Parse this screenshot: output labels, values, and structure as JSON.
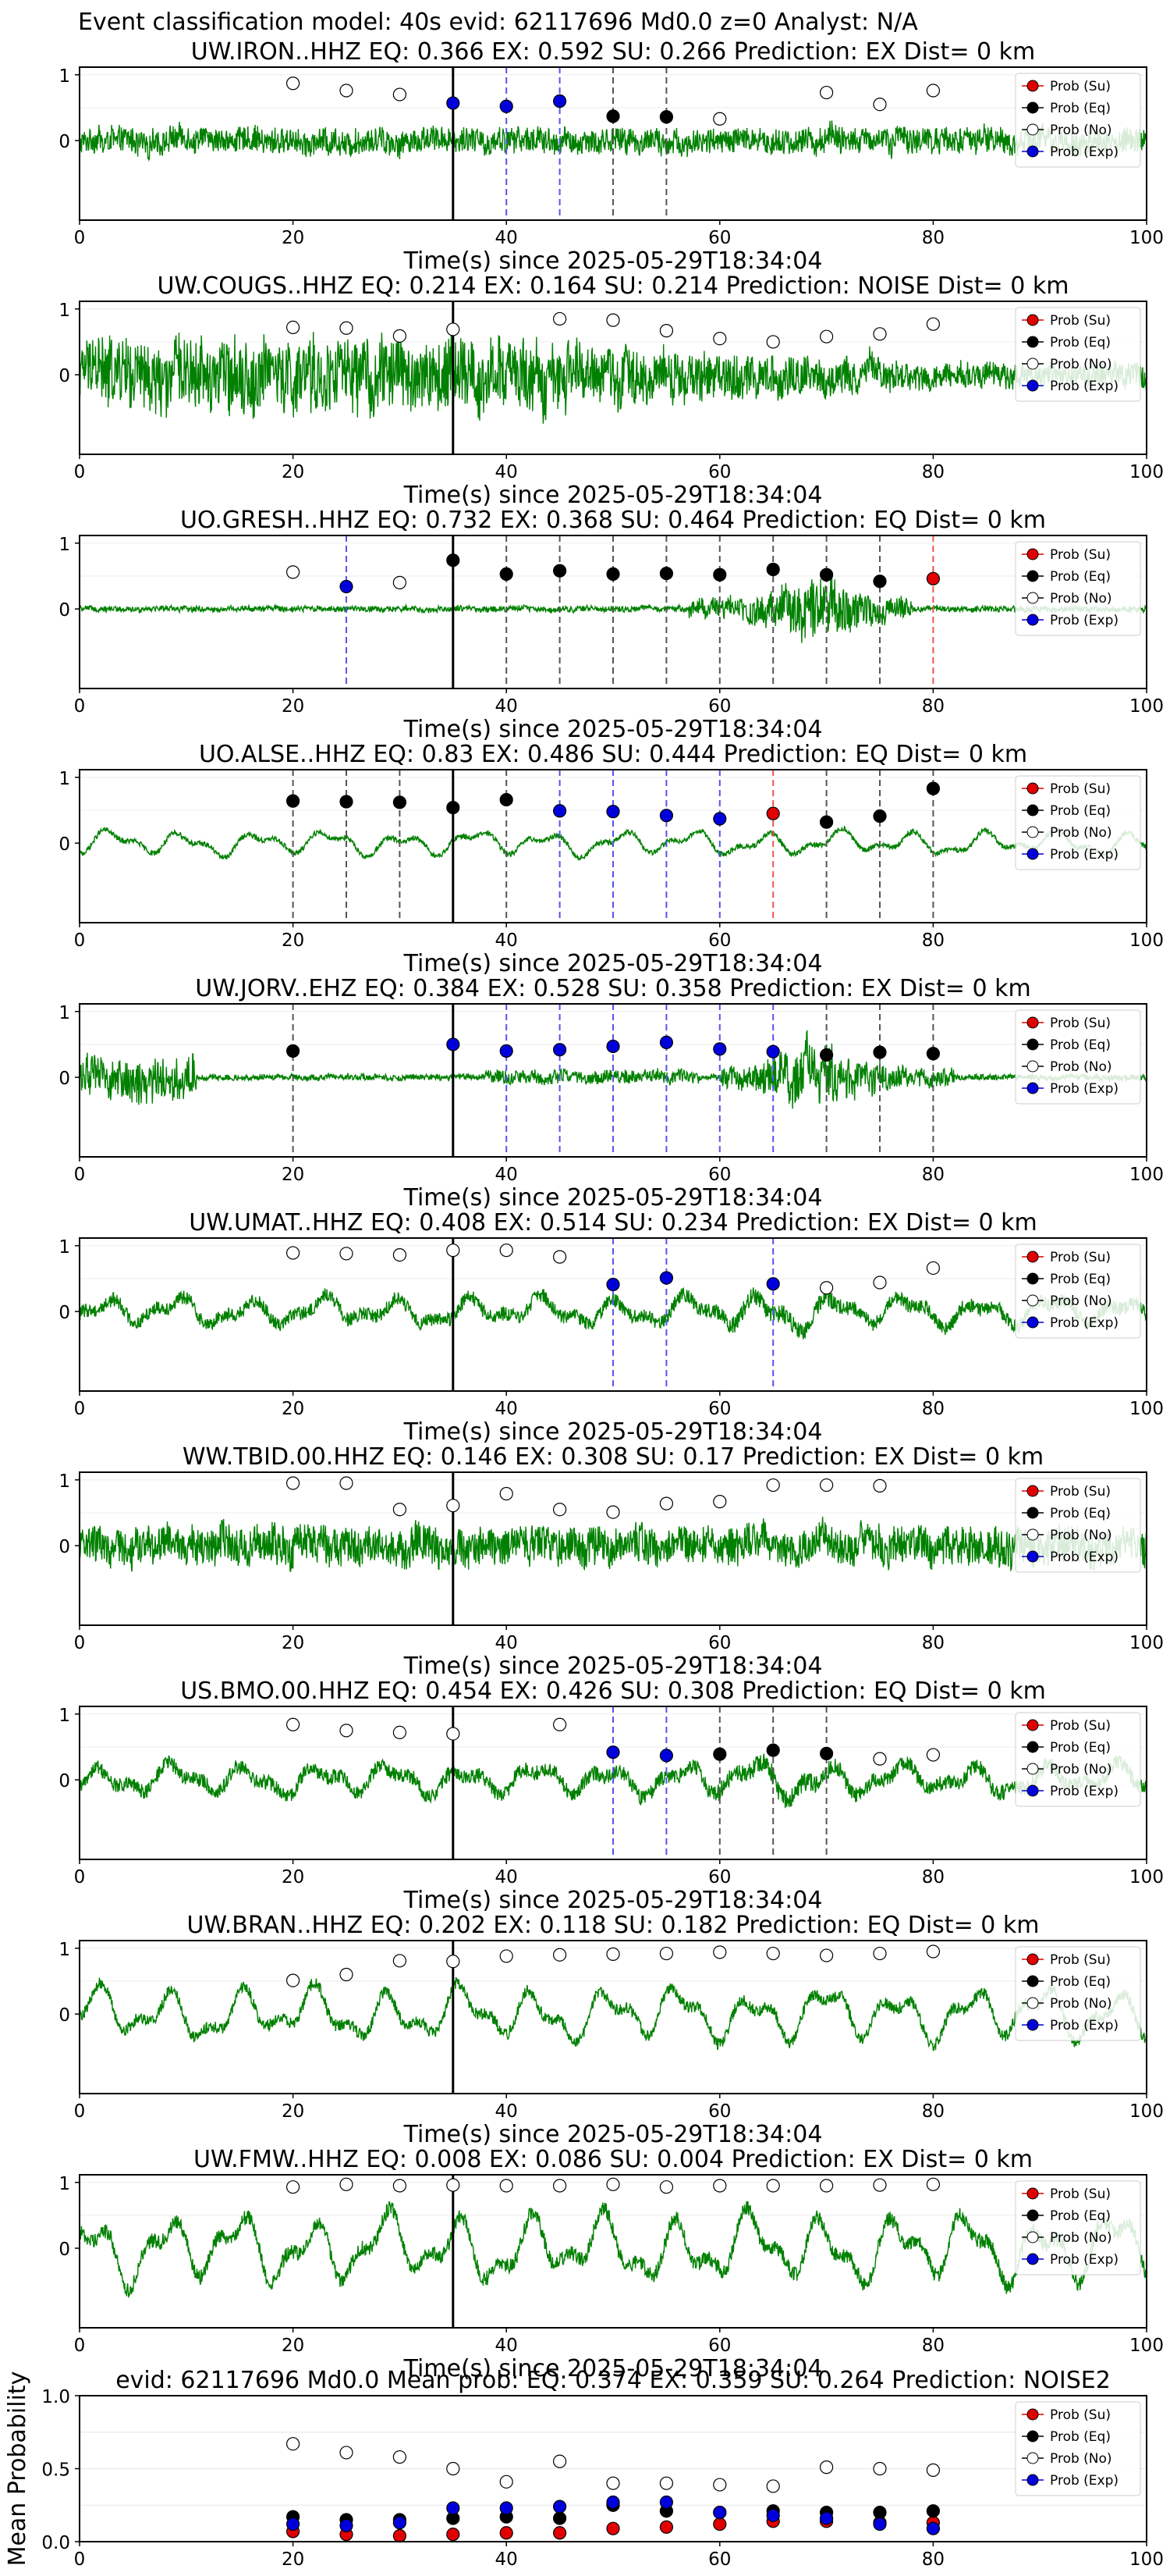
{
  "figure": {
    "suptitle": "Event classification model: 40s evid: 62117696 Md0.0 z=0 Analyst: N/A"
  },
  "legend": {
    "entries": [
      {
        "label": "Prob (Su)",
        "color": "#e00000",
        "filled": true
      },
      {
        "label": "Prob (Eq)",
        "color": "#000000",
        "filled": true
      },
      {
        "label": "Prob (No)",
        "color": "#ffffff",
        "filled": false
      },
      {
        "label": "Prob (Exp)",
        "color": "#0000dd",
        "filled": true
      }
    ],
    "placement": "top-right"
  },
  "colors": {
    "waveform": "#008000",
    "su": "#e00000",
    "eq": "#000000",
    "no": "#ffffff",
    "exp": "#0000dd",
    "line_eq": "#555555",
    "line_exp": "#5555ee",
    "line_su": "#ee5555",
    "origin_line": "#000000"
  },
  "chart_data": [
    {
      "type": "scatter",
      "title": "UW.IRON..HHZ   EQ: 0.366  EX: 0.592  SU: 0.266   Prediction: EX    Dist= 0 km",
      "xlabel": "Time(s) since 2025-05-29T18:34:04",
      "xlim": [
        0,
        100
      ],
      "xticks": [
        "0",
        "20",
        "40",
        "60",
        "80",
        "100"
      ],
      "yticks": [
        "1",
        "0"
      ],
      "waveform_style": {
        "kind": "noisy",
        "amp": 0.22
      },
      "origin_line": 35,
      "points": [
        {
          "x": 20,
          "y": 0.87,
          "class": "no"
        },
        {
          "x": 25,
          "y": 0.76,
          "class": "no"
        },
        {
          "x": 30,
          "y": 0.7,
          "class": "no"
        },
        {
          "x": 35,
          "y": 0.57,
          "class": "exp"
        },
        {
          "x": 40,
          "y": 0.52,
          "class": "exp"
        },
        {
          "x": 45,
          "y": 0.6,
          "class": "exp"
        },
        {
          "x": 50,
          "y": 0.37,
          "class": "eq"
        },
        {
          "x": 55,
          "y": 0.36,
          "class": "eq"
        },
        {
          "x": 60,
          "y": 0.33,
          "class": "no"
        },
        {
          "x": 70,
          "y": 0.73,
          "class": "no"
        },
        {
          "x": 75,
          "y": 0.55,
          "class": "no"
        },
        {
          "x": 80,
          "y": 0.76,
          "class": "no"
        }
      ]
    },
    {
      "type": "scatter",
      "title": "UW.COUGS..HHZ   EQ: 0.214  EX: 0.164  SU: 0.214   Prediction: NOISE    Dist= 0 km",
      "xlabel": "Time(s) since 2025-05-29T18:34:04",
      "xlim": [
        0,
        100
      ],
      "xticks": [
        "0",
        "20",
        "40",
        "60",
        "80",
        "100"
      ],
      "yticks": [
        "1",
        "0"
      ],
      "waveform_style": {
        "kind": "burst_decay",
        "amp": 0.6
      },
      "origin_line": 35,
      "points": [
        {
          "x": 20,
          "y": 0.72,
          "class": "no"
        },
        {
          "x": 25,
          "y": 0.71,
          "class": "no"
        },
        {
          "x": 30,
          "y": 0.59,
          "class": "no"
        },
        {
          "x": 35,
          "y": 0.69,
          "class": "no"
        },
        {
          "x": 45,
          "y": 0.85,
          "class": "no"
        },
        {
          "x": 50,
          "y": 0.83,
          "class": "no"
        },
        {
          "x": 55,
          "y": 0.67,
          "class": "no"
        },
        {
          "x": 60,
          "y": 0.55,
          "class": "no"
        },
        {
          "x": 65,
          "y": 0.5,
          "class": "no"
        },
        {
          "x": 70,
          "y": 0.58,
          "class": "no"
        },
        {
          "x": 75,
          "y": 0.62,
          "class": "no"
        },
        {
          "x": 80,
          "y": 0.77,
          "class": "no"
        }
      ]
    },
    {
      "type": "scatter",
      "title": "UO.GRESH..HHZ   EQ: 0.732  EX: 0.368  SU: 0.464   Prediction: EQ    Dist= 0 km",
      "xlabel": "Time(s) since 2025-05-29T18:34:04",
      "xlim": [
        0,
        100
      ],
      "xticks": [
        "0",
        "20",
        "40",
        "60",
        "80",
        "100"
      ],
      "yticks": [
        "1",
        "0"
      ],
      "waveform_style": {
        "kind": "quiet_event",
        "amp": 0.05
      },
      "origin_line": 35,
      "points": [
        {
          "x": 20,
          "y": 0.56,
          "class": "no"
        },
        {
          "x": 25,
          "y": 0.34,
          "class": "exp"
        },
        {
          "x": 30,
          "y": 0.4,
          "class": "no"
        },
        {
          "x": 35,
          "y": 0.74,
          "class": "eq"
        },
        {
          "x": 40,
          "y": 0.53,
          "class": "eq"
        },
        {
          "x": 45,
          "y": 0.58,
          "class": "eq"
        },
        {
          "x": 50,
          "y": 0.53,
          "class": "eq"
        },
        {
          "x": 55,
          "y": 0.54,
          "class": "eq"
        },
        {
          "x": 60,
          "y": 0.52,
          "class": "eq"
        },
        {
          "x": 65,
          "y": 0.6,
          "class": "eq"
        },
        {
          "x": 70,
          "y": 0.52,
          "class": "eq"
        },
        {
          "x": 75,
          "y": 0.42,
          "class": "eq"
        },
        {
          "x": 80,
          "y": 0.46,
          "class": "su"
        }
      ]
    },
    {
      "type": "scatter",
      "title": "UO.ALSE..HHZ   EQ: 0.83  EX: 0.486  SU: 0.444   Prediction: EQ    Dist= 0 km",
      "xlabel": "Time(s) since 2025-05-29T18:34:04",
      "xlim": [
        0,
        100
      ],
      "xticks": [
        "0",
        "20",
        "40",
        "60",
        "80",
        "100"
      ],
      "yticks": [
        "1",
        "0"
      ],
      "waveform_style": {
        "kind": "smooth",
        "amp": 0.22
      },
      "origin_line": 35,
      "points": [
        {
          "x": 20,
          "y": 0.64,
          "class": "eq"
        },
        {
          "x": 25,
          "y": 0.63,
          "class": "eq"
        },
        {
          "x": 30,
          "y": 0.62,
          "class": "eq"
        },
        {
          "x": 35,
          "y": 0.54,
          "class": "eq"
        },
        {
          "x": 40,
          "y": 0.66,
          "class": "eq"
        },
        {
          "x": 45,
          "y": 0.49,
          "class": "exp"
        },
        {
          "x": 50,
          "y": 0.48,
          "class": "exp"
        },
        {
          "x": 55,
          "y": 0.42,
          "class": "exp"
        },
        {
          "x": 60,
          "y": 0.37,
          "class": "exp"
        },
        {
          "x": 65,
          "y": 0.45,
          "class": "su"
        },
        {
          "x": 70,
          "y": 0.32,
          "class": "eq"
        },
        {
          "x": 75,
          "y": 0.41,
          "class": "eq"
        },
        {
          "x": 80,
          "y": 0.83,
          "class": "eq"
        }
      ]
    },
    {
      "type": "scatter",
      "title": "UW.JORV..EHZ   EQ: 0.384  EX: 0.528  SU: 0.358   Prediction: EX    Dist= 0 km",
      "xlabel": "Time(s) since 2025-05-29T18:34:04",
      "xlim": [
        0,
        100
      ],
      "xticks": [
        "0",
        "20",
        "40",
        "60",
        "80",
        "100"
      ],
      "yticks": [
        "1",
        "0"
      ],
      "waveform_style": {
        "kind": "two_bursts",
        "amp": 0.05
      },
      "origin_line": 35,
      "points": [
        {
          "x": 20,
          "y": 0.4,
          "class": "eq"
        },
        {
          "x": 35,
          "y": 0.5,
          "class": "exp"
        },
        {
          "x": 40,
          "y": 0.4,
          "class": "exp"
        },
        {
          "x": 45,
          "y": 0.42,
          "class": "exp"
        },
        {
          "x": 50,
          "y": 0.47,
          "class": "exp"
        },
        {
          "x": 55,
          "y": 0.53,
          "class": "exp"
        },
        {
          "x": 60,
          "y": 0.43,
          "class": "exp"
        },
        {
          "x": 65,
          "y": 0.39,
          "class": "exp"
        },
        {
          "x": 70,
          "y": 0.34,
          "class": "eq"
        },
        {
          "x": 75,
          "y": 0.38,
          "class": "eq"
        },
        {
          "x": 80,
          "y": 0.36,
          "class": "eq"
        }
      ]
    },
    {
      "type": "scatter",
      "title": "UW.UMAT..HHZ   EQ: 0.408  EX: 0.514  SU: 0.234   Prediction: EX    Dist= 0 km",
      "xlabel": "Time(s) since 2025-05-29T18:34:04",
      "xlim": [
        0,
        100
      ],
      "xticks": [
        "0",
        "20",
        "40",
        "60",
        "80",
        "100"
      ],
      "yticks": [
        "1",
        "0"
      ],
      "waveform_style": {
        "kind": "mixed",
        "amp": 0.3
      },
      "origin_line": 35,
      "points": [
        {
          "x": 20,
          "y": 0.89,
          "class": "no"
        },
        {
          "x": 25,
          "y": 0.88,
          "class": "no"
        },
        {
          "x": 30,
          "y": 0.86,
          "class": "no"
        },
        {
          "x": 35,
          "y": 0.93,
          "class": "no"
        },
        {
          "x": 40,
          "y": 0.93,
          "class": "no"
        },
        {
          "x": 45,
          "y": 0.83,
          "class": "no"
        },
        {
          "x": 50,
          "y": 0.41,
          "class": "exp"
        },
        {
          "x": 55,
          "y": 0.51,
          "class": "exp"
        },
        {
          "x": 65,
          "y": 0.42,
          "class": "exp"
        },
        {
          "x": 70,
          "y": 0.36,
          "class": "no"
        },
        {
          "x": 75,
          "y": 0.44,
          "class": "no"
        },
        {
          "x": 80,
          "y": 0.66,
          "class": "no"
        }
      ]
    },
    {
      "type": "scatter",
      "title": "WW.TBID.00.HHZ   EQ: 0.146  EX: 0.308  SU: 0.17   Prediction: EX    Dist= 0 km",
      "xlabel": "Time(s) since 2025-05-29T18:34:04",
      "xlim": [
        0,
        100
      ],
      "xticks": [
        "0",
        "20",
        "40",
        "60",
        "80",
        "100"
      ],
      "yticks": [
        "1",
        "0"
      ],
      "waveform_style": {
        "kind": "noisy",
        "amp": 0.32
      },
      "origin_line": 35,
      "points": [
        {
          "x": 20,
          "y": 0.95,
          "class": "no"
        },
        {
          "x": 25,
          "y": 0.95,
          "class": "no"
        },
        {
          "x": 30,
          "y": 0.55,
          "class": "no"
        },
        {
          "x": 35,
          "y": 0.61,
          "class": "no"
        },
        {
          "x": 40,
          "y": 0.79,
          "class": "no"
        },
        {
          "x": 45,
          "y": 0.55,
          "class": "no"
        },
        {
          "x": 50,
          "y": 0.51,
          "class": "no"
        },
        {
          "x": 55,
          "y": 0.64,
          "class": "no"
        },
        {
          "x": 60,
          "y": 0.67,
          "class": "no"
        },
        {
          "x": 65,
          "y": 0.92,
          "class": "no"
        },
        {
          "x": 70,
          "y": 0.92,
          "class": "no"
        },
        {
          "x": 75,
          "y": 0.91,
          "class": "no"
        }
      ]
    },
    {
      "type": "scatter",
      "title": "US.BMO.00.HHZ   EQ: 0.454  EX: 0.426  SU: 0.308   Prediction: EQ    Dist= 0 km",
      "xlabel": "Time(s) since 2025-05-29T18:34:04",
      "xlim": [
        0,
        100
      ],
      "xticks": [
        "0",
        "20",
        "40",
        "60",
        "80",
        "100"
      ],
      "yticks": [
        "1",
        "0"
      ],
      "waveform_style": {
        "kind": "mixed",
        "amp": 0.32
      },
      "origin_line": 35,
      "points": [
        {
          "x": 20,
          "y": 0.84,
          "class": "no"
        },
        {
          "x": 25,
          "y": 0.75,
          "class": "no"
        },
        {
          "x": 30,
          "y": 0.72,
          "class": "no"
        },
        {
          "x": 35,
          "y": 0.7,
          "class": "no"
        },
        {
          "x": 45,
          "y": 0.84,
          "class": "no"
        },
        {
          "x": 50,
          "y": 0.42,
          "class": "exp"
        },
        {
          "x": 55,
          "y": 0.37,
          "class": "exp"
        },
        {
          "x": 60,
          "y": 0.39,
          "class": "eq"
        },
        {
          "x": 65,
          "y": 0.45,
          "class": "eq"
        },
        {
          "x": 70,
          "y": 0.4,
          "class": "eq"
        },
        {
          "x": 75,
          "y": 0.32,
          "class": "no"
        },
        {
          "x": 80,
          "y": 0.38,
          "class": "no"
        }
      ]
    },
    {
      "type": "scatter",
      "title": "UW.BRAN..HHZ   EQ: 0.202  EX: 0.118  SU: 0.182   Prediction: EQ    Dist= 0 km",
      "xlabel": "Time(s) since 2025-05-29T18:34:04",
      "xlim": [
        0,
        100
      ],
      "xticks": [
        "0",
        "20",
        "40",
        "60",
        "80",
        "100"
      ],
      "yticks": [
        "1",
        "0"
      ],
      "waveform_style": {
        "kind": "smooth",
        "amp": 0.48
      },
      "origin_line": 35,
      "points": [
        {
          "x": 20,
          "y": 0.51,
          "class": "no"
        },
        {
          "x": 25,
          "y": 0.6,
          "class": "no"
        },
        {
          "x": 30,
          "y": 0.81,
          "class": "no"
        },
        {
          "x": 35,
          "y": 0.8,
          "class": "no"
        },
        {
          "x": 40,
          "y": 0.88,
          "class": "no"
        },
        {
          "x": 45,
          "y": 0.9,
          "class": "no"
        },
        {
          "x": 50,
          "y": 0.91,
          "class": "no"
        },
        {
          "x": 55,
          "y": 0.92,
          "class": "no"
        },
        {
          "x": 60,
          "y": 0.94,
          "class": "no"
        },
        {
          "x": 65,
          "y": 0.92,
          "class": "no"
        },
        {
          "x": 70,
          "y": 0.89,
          "class": "no"
        },
        {
          "x": 75,
          "y": 0.92,
          "class": "no"
        },
        {
          "x": 80,
          "y": 0.95,
          "class": "no"
        }
      ]
    },
    {
      "type": "scatter",
      "title": "UW.FMW..HHZ   EQ: 0.008  EX: 0.086  SU: 0.004   Prediction: EX    Dist= 0 km",
      "xlabel": "Time(s) since 2025-05-29T18:34:04",
      "xlim": [
        0,
        100
      ],
      "xticks": [
        "0",
        "20",
        "40",
        "60",
        "80",
        "100"
      ],
      "yticks": [
        "1",
        "0"
      ],
      "waveform_style": {
        "kind": "smooth",
        "amp": 0.62
      },
      "origin_line": 35,
      "points": [
        {
          "x": 20,
          "y": 0.93,
          "class": "no"
        },
        {
          "x": 25,
          "y": 0.97,
          "class": "no"
        },
        {
          "x": 30,
          "y": 0.95,
          "class": "no"
        },
        {
          "x": 35,
          "y": 0.96,
          "class": "no"
        },
        {
          "x": 40,
          "y": 0.95,
          "class": "no"
        },
        {
          "x": 45,
          "y": 0.95,
          "class": "no"
        },
        {
          "x": 50,
          "y": 0.97,
          "class": "no"
        },
        {
          "x": 55,
          "y": 0.93,
          "class": "no"
        },
        {
          "x": 60,
          "y": 0.95,
          "class": "no"
        },
        {
          "x": 65,
          "y": 0.95,
          "class": "no"
        },
        {
          "x": 70,
          "y": 0.95,
          "class": "no"
        },
        {
          "x": 75,
          "y": 0.96,
          "class": "no"
        },
        {
          "x": 80,
          "y": 0.97,
          "class": "no"
        }
      ]
    },
    {
      "type": "scatter",
      "title": "evid: 62117696  Md0.0   Mean prob:   EQ: 0.374  EX: 0.359  SU: 0.264   Prediction: NOISE2",
      "ylabel": "Mean Probability",
      "xlim": [
        0,
        100
      ],
      "ylim": [
        0,
        1
      ],
      "xticks": [
        "0",
        "20",
        "40",
        "60",
        "80",
        "100"
      ],
      "yticks": [
        "1.0",
        "0.5",
        "0.0"
      ],
      "grid": true,
      "x": [
        20,
        25,
        30,
        35,
        40,
        45,
        50,
        55,
        60,
        65,
        70,
        75,
        80
      ],
      "series": [
        {
          "name": "Prob (Su)",
          "class": "su",
          "values": [
            0.07,
            0.05,
            0.04,
            0.05,
            0.06,
            0.06,
            0.09,
            0.1,
            0.12,
            0.14,
            0.14,
            0.13,
            0.13
          ]
        },
        {
          "name": "Prob (Eq)",
          "class": "eq",
          "values": [
            0.17,
            0.15,
            0.15,
            0.16,
            0.17,
            0.16,
            0.25,
            0.21,
            0.2,
            0.21,
            0.2,
            0.2,
            0.21
          ]
        },
        {
          "name": "Prob (No)",
          "class": "no",
          "values": [
            0.67,
            0.61,
            0.58,
            0.5,
            0.41,
            0.55,
            0.4,
            0.4,
            0.39,
            0.38,
            0.51,
            0.5,
            0.49
          ]
        },
        {
          "name": "Prob (Exp)",
          "class": "exp",
          "values": [
            0.12,
            0.11,
            0.13,
            0.23,
            0.23,
            0.24,
            0.27,
            0.27,
            0.2,
            0.18,
            0.16,
            0.12,
            0.09
          ]
        }
      ]
    }
  ]
}
